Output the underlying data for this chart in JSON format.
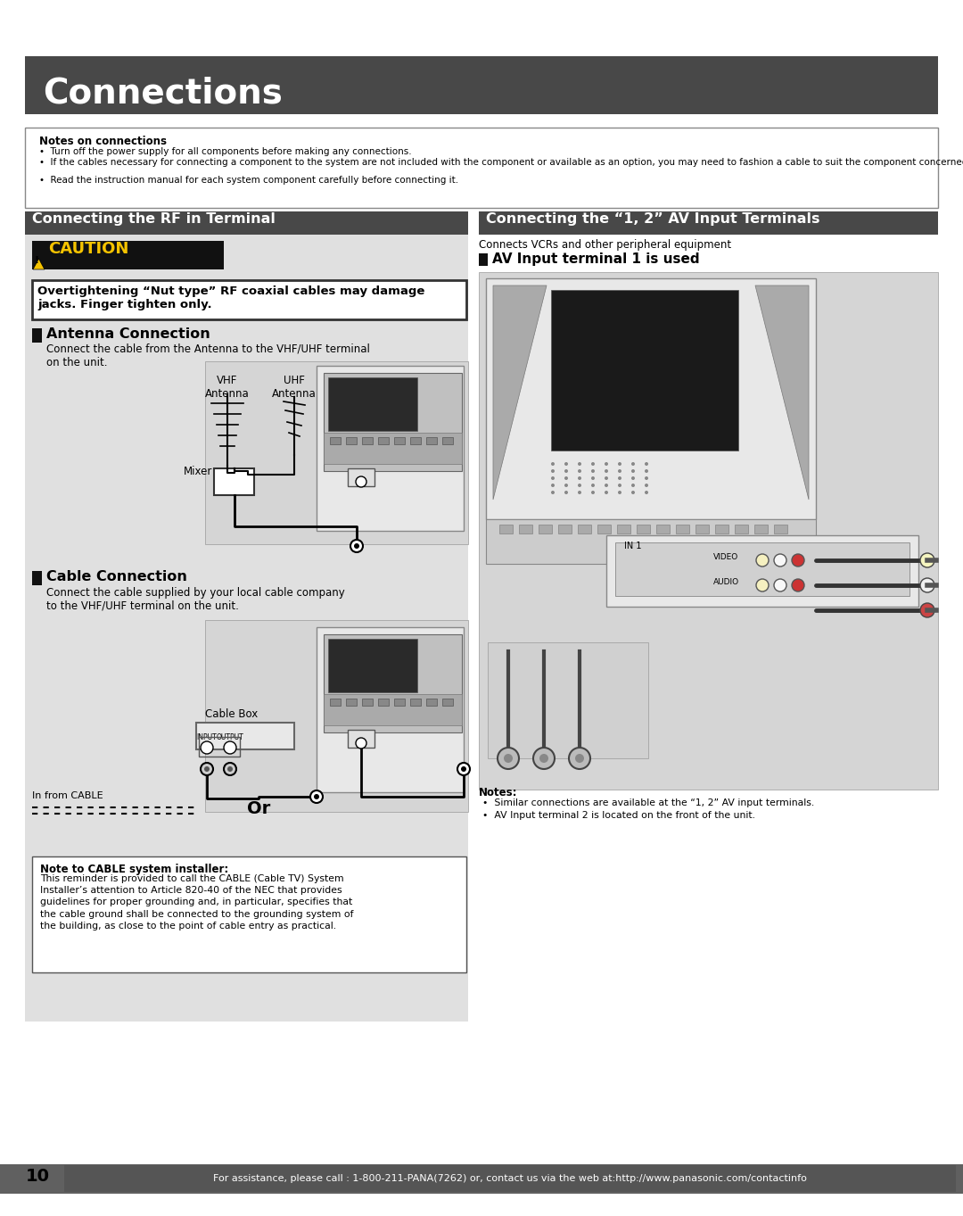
{
  "page_bg": "#ffffff",
  "header_bg": "#484848",
  "header_text": "Connections",
  "header_text_color": "#ffffff",
  "section_bg": "#484848",
  "section_text_color": "#ffffff",
  "section1_title": "Connecting the RF in Terminal",
  "section2_title": "Connecting the “1, 2” AV Input Terminals",
  "notes_box_title": "Notes on connections",
  "notes_items": [
    "Turn off the power supply for all components before making any connections.",
    "If the cables necessary for connecting a component to the system are not included with the component or available as an option, you may need to fashion a cable to suit the component concerned.",
    "Read the instruction manual for each system component carefully before connecting it."
  ],
  "caution_bg": "#000000",
  "caution_text": "CAUTION",
  "caution_text_color": "#f5c300",
  "caution_box_text": "Overtightening “Nut type” RF coaxial cables may damage\njacks. Finger tighten only.",
  "antenna_section_title": "Antenna Connection",
  "antenna_desc": "Connect the cable from the Antenna to the VHF/UHF terminal\non the unit.",
  "cable_section_title": "Cable Connection",
  "cable_desc": "Connect the cable supplied by your local cable company\nto the VHF/UHF terminal on the unit.",
  "av_desc": "Connects VCRs and other peripheral equipment",
  "av_terminal_title": "AV Input terminal 1 is used",
  "av_notes_title": "Notes:",
  "av_notes": [
    "Similar connections are available at the “1, 2” AV input terminals.",
    "AV Input terminal 2 is located on the front of the unit."
  ],
  "footer_bg": "#606060",
  "footer_text": "For assistance, please call : 1-800-211-PANA(7262) or, contact us via the web at:http://www.panasonic.com/contactinfo",
  "footer_text_color": "#ffffff",
  "page_num": "10",
  "cable_note_title": "Note to CABLE system installer:",
  "cable_note_text": "This reminder is provided to call the CABLE (Cable TV) System\nInstaller’s attention to Article 820-40 of the NEC that provides\nguidelines for proper grounding and, in particular, specifies that\nthe cable ground shall be connected to the grounding system of\nthe building, as close to the point of cable entry as practical.",
  "diagram_bg": "#d5d5d5",
  "gray_panel_bg": "#e0e0e0"
}
